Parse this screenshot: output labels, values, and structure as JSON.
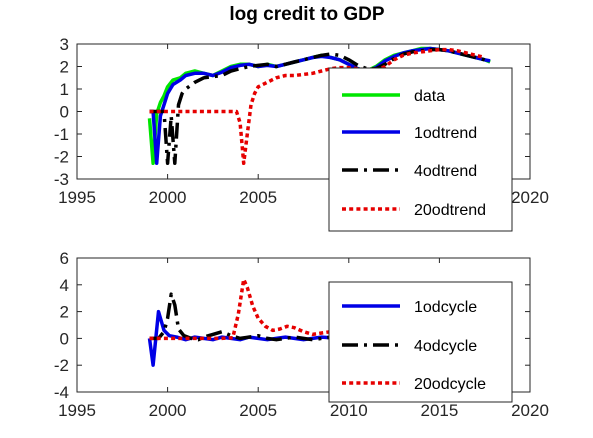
{
  "figure_title": "log credit  to GDP",
  "chart_data": [
    {
      "type": "line",
      "xlim": [
        1995,
        2020
      ],
      "ylim": [
        -3,
        3
      ],
      "xticks": [
        "1995",
        "2000",
        "2005",
        "2010",
        "2015",
        "2020"
      ],
      "yticks": [
        "3",
        "2",
        "1",
        "0",
        "-1",
        "-2",
        "-3"
      ],
      "legend_position": "inside-right",
      "series": [
        {
          "name": "data",
          "color": "#00e600",
          "dash": "solid",
          "x": [
            1999.0,
            1999.2,
            1999.4,
            1999.6,
            1999.8,
            2000.0,
            2000.3,
            2000.7,
            2001.0,
            2001.5,
            2002.0,
            2002.5,
            2003.0,
            2003.5,
            2004.0,
            2004.5,
            2005.0,
            2005.5,
            2006.0,
            2006.5,
            2007.0,
            2007.5,
            2008.0,
            2008.5,
            2009.0,
            2009.5,
            2010.0,
            2010.5,
            2011.0,
            2011.5,
            2012.0,
            2012.5,
            2013.0,
            2013.5,
            2014.0,
            2014.5,
            2015.0,
            2015.5,
            2016.0,
            2016.5,
            2017.0,
            2017.5,
            2017.8
          ],
          "values": [
            -0.3,
            -2.3,
            -0.1,
            0.4,
            0.7,
            1.1,
            1.4,
            1.5,
            1.7,
            1.8,
            1.7,
            1.6,
            1.8,
            2.0,
            2.1,
            2.1,
            2.0,
            2.1,
            2.0,
            2.1,
            2.2,
            2.3,
            2.4,
            2.5,
            2.4,
            2.3,
            2.1,
            1.9,
            1.8,
            2.0,
            2.3,
            2.5,
            2.6,
            2.7,
            2.8,
            2.8,
            2.75,
            2.7,
            2.6,
            2.5,
            2.4,
            2.3,
            2.2
          ]
        },
        {
          "name": "1odtrend",
          "color": "#0000e6",
          "dash": "solid",
          "x": [
            1999.0,
            1999.2,
            1999.4,
            1999.6,
            1999.8,
            2000.0,
            2000.3,
            2000.7,
            2001.0,
            2001.5,
            2002.0,
            2002.5,
            2003.0,
            2003.5,
            2004.0,
            2004.5,
            2005.0,
            2005.5,
            2006.0,
            2006.5,
            2007.0,
            2007.5,
            2008.0,
            2008.5,
            2009.0,
            2009.5,
            2010.0,
            2010.5,
            2011.0,
            2011.5,
            2012.0,
            2012.5,
            2013.0,
            2013.5,
            2014.0,
            2014.5,
            2015.0,
            2015.5,
            2016.0,
            2016.5,
            2017.0,
            2017.5,
            2017.8
          ],
          "values": [
            0.0,
            0.0,
            -2.3,
            -0.2,
            0.3,
            0.8,
            1.2,
            1.4,
            1.6,
            1.7,
            1.7,
            1.6,
            1.75,
            1.95,
            2.05,
            2.1,
            2.0,
            2.05,
            2.0,
            2.1,
            2.2,
            2.3,
            2.4,
            2.45,
            2.4,
            2.3,
            2.1,
            1.9,
            1.8,
            1.95,
            2.25,
            2.45,
            2.6,
            2.7,
            2.75,
            2.8,
            2.75,
            2.7,
            2.6,
            2.5,
            2.4,
            2.3,
            2.25
          ]
        },
        {
          "name": "4odtrend",
          "color": "#000000",
          "dash": "dashdot",
          "x": [
            1999.0,
            1999.4,
            1999.8,
            2000.0,
            2000.2,
            2000.4,
            2000.6,
            2000.8,
            2001.0,
            2001.5,
            2002.0,
            2002.5,
            2003.0,
            2003.5,
            2004.0,
            2004.5,
            2005.0,
            2005.5,
            2006.0,
            2006.5,
            2007.0,
            2007.5,
            2008.0,
            2008.5,
            2009.0,
            2009.5,
            2010.0,
            2010.5,
            2011.0,
            2011.5,
            2012.0,
            2012.5,
            2013.0,
            2013.5,
            2014.0,
            2014.5,
            2015.0,
            2015.5,
            2016.0,
            2016.5,
            2017.0,
            2017.5
          ],
          "values": [
            0.0,
            0.0,
            0.0,
            -2.3,
            -0.2,
            -2.3,
            0.3,
            0.8,
            1.0,
            1.3,
            1.5,
            1.55,
            1.6,
            1.8,
            1.9,
            2.0,
            2.05,
            2.1,
            2.0,
            2.1,
            2.2,
            2.3,
            2.4,
            2.5,
            2.55,
            2.5,
            2.3,
            2.05,
            1.9,
            1.9,
            2.1,
            2.35,
            2.55,
            2.65,
            2.7,
            2.75,
            2.75,
            2.7,
            2.6,
            2.5,
            2.4,
            2.3
          ]
        },
        {
          "name": "20odtrend",
          "color": "#e60000",
          "dash": "dotted",
          "x": [
            1999.0,
            2000.0,
            2001.0,
            2002.0,
            2003.0,
            2003.8,
            2004.0,
            2004.2,
            2004.4,
            2004.6,
            2004.8,
            2005.0,
            2005.5,
            2006.0,
            2006.5,
            2007.0,
            2007.5,
            2008.0,
            2008.5,
            2009.0,
            2009.5,
            2010.0,
            2010.5,
            2011.0,
            2011.5,
            2012.0,
            2012.5,
            2013.0,
            2013.5,
            2014.0,
            2014.5,
            2015.0,
            2015.5,
            2016.0,
            2016.5,
            2017.0,
            2017.5
          ],
          "values": [
            0.0,
            0.0,
            0.0,
            0.0,
            0.0,
            0.0,
            -0.5,
            -2.3,
            -1.0,
            0.3,
            0.8,
            1.1,
            1.3,
            1.5,
            1.6,
            1.6,
            1.65,
            1.7,
            1.8,
            1.9,
            1.95,
            1.95,
            1.9,
            1.85,
            1.8,
            2.0,
            2.3,
            2.5,
            2.6,
            2.65,
            2.7,
            2.75,
            2.75,
            2.7,
            2.6,
            2.5,
            2.4
          ]
        }
      ]
    },
    {
      "type": "line",
      "xlim": [
        1995,
        2020
      ],
      "ylim": [
        -4,
        6
      ],
      "xticks": [
        "1995",
        "2000",
        "2005",
        "2010",
        "2015",
        "2020"
      ],
      "yticks": [
        "6",
        "4",
        "2",
        "0",
        "-2",
        "-4"
      ],
      "legend_position": "inside-right",
      "series": [
        {
          "name": "1odcycle",
          "color": "#0000e6",
          "dash": "solid",
          "x": [
            1999.0,
            1999.2,
            1999.5,
            1999.8,
            2000.1,
            2000.5,
            2001.0,
            2001.5,
            2002.0,
            2002.5,
            2003.0,
            2003.5,
            2004.0,
            2004.5,
            2005.0,
            2005.5,
            2006.0,
            2006.5,
            2007.0,
            2007.5,
            2008.0,
            2008.5,
            2009.0
          ],
          "values": [
            0.0,
            -2.0,
            2.0,
            0.6,
            0.2,
            0.1,
            -0.1,
            0.1,
            0.0,
            -0.1,
            0.1,
            0.0,
            -0.1,
            0.1,
            0.0,
            -0.1,
            0.0,
            0.1,
            0.0,
            -0.1,
            0.0,
            0.1,
            0.05
          ]
        },
        {
          "name": "4odcycle",
          "color": "#000000",
          "dash": "dashdot",
          "x": [
            1999.0,
            1999.5,
            1999.8,
            2000.0,
            2000.2,
            2000.4,
            2000.6,
            2000.9,
            2001.3,
            2001.7,
            2002.0,
            2002.5,
            2003.0,
            2003.5,
            2004.0,
            2004.5,
            2005.0,
            2005.5,
            2006.0,
            2006.5,
            2007.0,
            2007.5,
            2008.0,
            2008.5,
            2009.0
          ],
          "values": [
            0.0,
            0.0,
            0.5,
            1.5,
            3.3,
            2.5,
            0.7,
            0.2,
            0.0,
            -0.1,
            0.1,
            0.3,
            0.5,
            0.2,
            0.0,
            0.1,
            0.2,
            0.0,
            -0.1,
            0.0,
            0.1,
            0.0,
            -0.1,
            0.0,
            0.1
          ]
        },
        {
          "name": "20odcycle",
          "color": "#e60000",
          "dash": "dotted",
          "x": [
            1999.0,
            2000.0,
            2001.0,
            2002.0,
            2003.0,
            2003.6,
            2003.9,
            2004.2,
            2004.4,
            2004.7,
            2005.0,
            2005.4,
            2005.8,
            2006.2,
            2006.6,
            2007.0,
            2007.5,
            2008.0,
            2008.5,
            2009.0
          ],
          "values": [
            0.0,
            0.0,
            0.0,
            0.0,
            0.0,
            0.05,
            1.8,
            4.4,
            3.8,
            2.4,
            1.5,
            0.9,
            0.6,
            0.7,
            0.9,
            0.8,
            0.5,
            0.3,
            0.4,
            0.5
          ]
        }
      ]
    }
  ]
}
